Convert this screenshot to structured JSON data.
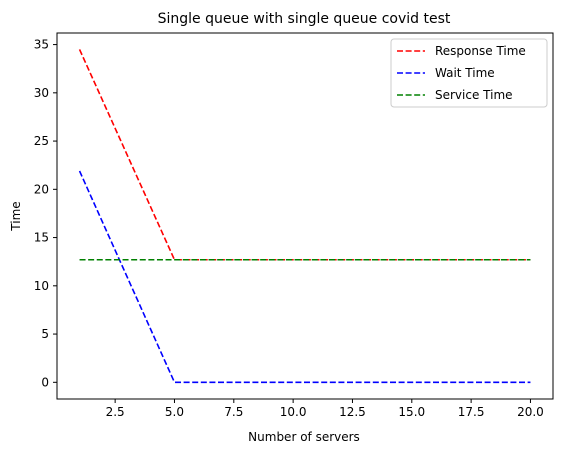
{
  "chart_data": {
    "type": "line",
    "title": "Single queue with single queue covid test",
    "xlabel": "Number of servers",
    "ylabel": "Time",
    "xlim": [
      0.05,
      20.95
    ],
    "ylim": [
      -1.73,
      36.2
    ],
    "xticks": [
      2.5,
      5.0,
      7.5,
      10.0,
      12.5,
      15.0,
      17.5,
      20.0
    ],
    "xtick_labels": [
      "2.5",
      "5.0",
      "7.5",
      "10.0",
      "12.5",
      "15.0",
      "17.5",
      "20.0"
    ],
    "yticks": [
      0,
      5,
      10,
      15,
      20,
      25,
      30,
      35
    ],
    "ytick_labels": [
      "0",
      "5",
      "10",
      "15",
      "20",
      "25",
      "30",
      "35"
    ],
    "grid": false,
    "legend_position": "top-right",
    "x": [
      1,
      5,
      20
    ],
    "series": [
      {
        "name": "Response Time",
        "color": "#ff0000",
        "dash": "dashed",
        "values": [
          34.5,
          12.7,
          12.7
        ]
      },
      {
        "name": "Wait Time",
        "color": "#0000ff",
        "dash": "dashed",
        "values": [
          21.9,
          0.0,
          0.0
        ]
      },
      {
        "name": "Service Time",
        "color": "#008000",
        "dash": "dashed",
        "values": [
          12.7,
          12.7,
          12.7
        ]
      }
    ]
  }
}
